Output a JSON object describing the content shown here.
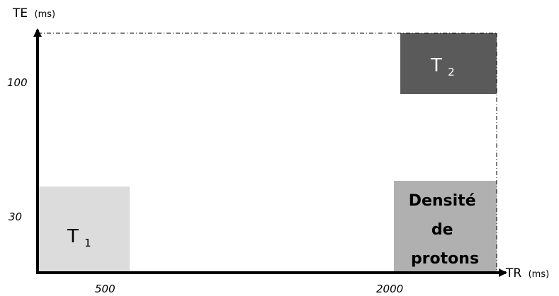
{
  "axes": {
    "y": {
      "title": "TE",
      "unit": "(ms)",
      "ticks": [
        "100",
        "30"
      ]
    },
    "x": {
      "title": "TR",
      "unit": "(ms)",
      "ticks": [
        "500",
        "2000"
      ]
    }
  },
  "regions": {
    "t1": {
      "label": "T",
      "subscript": "1",
      "color": "#dcdcdc"
    },
    "t2": {
      "label": "T",
      "subscript": "2",
      "color": "#5a5a5a"
    },
    "pd": {
      "lines": [
        "Densité",
        "de",
        "protons"
      ],
      "color": "#b0b0b0"
    }
  }
}
